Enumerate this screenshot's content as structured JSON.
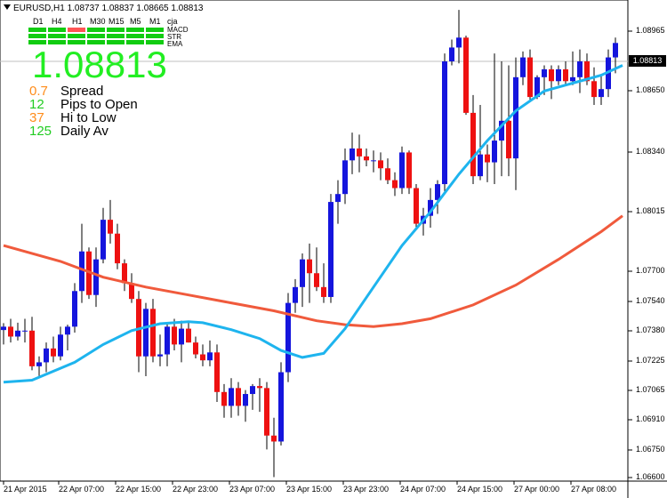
{
  "header": {
    "symbol_line": "EURUSD,H1  1.08737 1.08837 1.08665 1.08813"
  },
  "timeframes": [
    "D1",
    "H4",
    "H1",
    "M30",
    "M15",
    "M5",
    "M1"
  ],
  "timeframe_brand": "cja",
  "indicator_labels": [
    "MACD",
    "STR",
    "EMA"
  ],
  "indicator_grid": {
    "MACD": [
      "green",
      "green",
      "red",
      "green",
      "green",
      "green",
      "green"
    ],
    "STR": [
      "green",
      "green",
      "green",
      "green",
      "green",
      "green",
      "green"
    ],
    "EMA": [
      "green",
      "green",
      "green",
      "green",
      "green",
      "green",
      "green"
    ]
  },
  "big_price": "1.08813",
  "stats": [
    {
      "value": "0.7",
      "label": "Spread",
      "color": "#ff8c1a"
    },
    {
      "value": "12",
      "label": "Pips to Open",
      "color": "#22cc22"
    },
    {
      "value": "37",
      "label": "Hi to Low",
      "color": "#ff8c1a"
    },
    {
      "value": "125",
      "label": "Daily Av",
      "color": "#22cc22"
    }
  ],
  "price_axis": [
    "1.08965",
    "1.08650",
    "1.08340",
    "1.08015",
    "1.07700",
    "1.07540",
    "1.07380",
    "1.07225",
    "1.07065",
    "1.06910",
    "1.06750",
    "1.06600"
  ],
  "current_price_label": "1.08813",
  "time_axis": [
    "21 Apr 2015",
    "22 Apr 07:00",
    "22 Apr 15:00",
    "22 Apr 23:00",
    "23 Apr 07:00",
    "23 Apr 15:00",
    "23 Apr 23:00",
    "24 Apr 07:00",
    "24 Apr 15:00",
    "27 Apr 00:00",
    "27 Apr 08:00"
  ],
  "colors": {
    "bull": "#1515dd",
    "bear": "#ee1111",
    "ema_fast": "#1eb4ee",
    "ema_slow": "#f05a3c",
    "cur_line": "#c0c0c0",
    "grid_green": "#11cc11",
    "grid_red": "#ff5555"
  },
  "chart_data": {
    "type": "candlestick",
    "symbol": "EURUSD",
    "timeframe": "H1",
    "ylim": [
      1.066,
      1.0903
    ],
    "candles": [
      {
        "o": 1.07363,
        "h": 1.07398,
        "l": 1.0729,
        "c": 1.0738
      },
      {
        "o": 1.0738,
        "h": 1.0742,
        "l": 1.073,
        "c": 1.0733
      },
      {
        "o": 1.0733,
        "h": 1.074,
        "l": 1.0731,
        "c": 1.0736
      },
      {
        "o": 1.0736,
        "h": 1.0742,
        "l": 1.073,
        "c": 1.0736
      },
      {
        "o": 1.0736,
        "h": 1.0743,
        "l": 1.0716,
        "c": 1.0718
      },
      {
        "o": 1.0718,
        "h": 1.0723,
        "l": 1.0712,
        "c": 1.072
      },
      {
        "o": 1.072,
        "h": 1.073,
        "l": 1.0715,
        "c": 1.0727
      },
      {
        "o": 1.0727,
        "h": 1.0733,
        "l": 1.072,
        "c": 1.0723
      },
      {
        "o": 1.0723,
        "h": 1.0738,
        "l": 1.0721,
        "c": 1.0734
      },
      {
        "o": 1.0734,
        "h": 1.0739,
        "l": 1.0726,
        "c": 1.0738
      },
      {
        "o": 1.0738,
        "h": 1.076,
        "l": 1.0735,
        "c": 1.0756
      },
      {
        "o": 1.0756,
        "h": 1.079,
        "l": 1.075,
        "c": 1.0776
      },
      {
        "o": 1.0776,
        "h": 1.0778,
        "l": 1.0752,
        "c": 1.0754
      },
      {
        "o": 1.0754,
        "h": 1.0778,
        "l": 1.0748,
        "c": 1.0772
      },
      {
        "o": 1.0772,
        "h": 1.0798,
        "l": 1.077,
        "c": 1.0792
      },
      {
        "o": 1.0792,
        "h": 1.0802,
        "l": 1.078,
        "c": 1.0785
      },
      {
        "o": 1.0785,
        "h": 1.079,
        "l": 1.0767,
        "c": 1.077
      },
      {
        "o": 1.077,
        "h": 1.0772,
        "l": 1.0756,
        "c": 1.076
      },
      {
        "o": 1.076,
        "h": 1.0765,
        "l": 1.075,
        "c": 1.0752
      },
      {
        "o": 1.0752,
        "h": 1.0756,
        "l": 1.0715,
        "c": 1.0723
      },
      {
        "o": 1.0723,
        "h": 1.075,
        "l": 1.0713,
        "c": 1.0747
      },
      {
        "o": 1.0747,
        "h": 1.0752,
        "l": 1.072,
        "c": 1.0723
      },
      {
        "o": 1.0723,
        "h": 1.0734,
        "l": 1.0718,
        "c": 1.0724
      },
      {
        "o": 1.0724,
        "h": 1.074,
        "l": 1.0718,
        "c": 1.0738
      },
      {
        "o": 1.0738,
        "h": 1.0742,
        "l": 1.0726,
        "c": 1.0729
      },
      {
        "o": 1.0729,
        "h": 1.0741,
        "l": 1.072,
        "c": 1.0737
      },
      {
        "o": 1.0737,
        "h": 1.0741,
        "l": 1.073,
        "c": 1.073
      },
      {
        "o": 1.073,
        "h": 1.0733,
        "l": 1.0722,
        "c": 1.0724
      },
      {
        "o": 1.0724,
        "h": 1.0729,
        "l": 1.0718,
        "c": 1.0721
      },
      {
        "o": 1.0721,
        "h": 1.0731,
        "l": 1.0718,
        "c": 1.0725
      },
      {
        "o": 1.0725,
        "h": 1.0729,
        "l": 1.07,
        "c": 1.0705
      },
      {
        "o": 1.0705,
        "h": 1.0709,
        "l": 1.0692,
        "c": 1.0698
      },
      {
        "o": 1.0698,
        "h": 1.0712,
        "l": 1.0692,
        "c": 1.0707
      },
      {
        "o": 1.0707,
        "h": 1.071,
        "l": 1.0693,
        "c": 1.0698
      },
      {
        "o": 1.0698,
        "h": 1.0706,
        "l": 1.069,
        "c": 1.0704
      },
      {
        "o": 1.0704,
        "h": 1.0709,
        "l": 1.0696,
        "c": 1.0708
      },
      {
        "o": 1.0708,
        "h": 1.0712,
        "l": 1.0695,
        "c": 1.0707
      },
      {
        "o": 1.0707,
        "h": 1.071,
        "l": 1.0676,
        "c": 1.0683
      },
      {
        "o": 1.0683,
        "h": 1.0692,
        "l": 1.0662,
        "c": 1.068
      },
      {
        "o": 1.068,
        "h": 1.072,
        "l": 1.0678,
        "c": 1.0715
      },
      {
        "o": 1.0715,
        "h": 1.0755,
        "l": 1.071,
        "c": 1.075
      },
      {
        "o": 1.075,
        "h": 1.0762,
        "l": 1.0745,
        "c": 1.0758
      },
      {
        "o": 1.0758,
        "h": 1.0775,
        "l": 1.0748,
        "c": 1.0772
      },
      {
        "o": 1.0772,
        "h": 1.078,
        "l": 1.075,
        "c": 1.0765
      },
      {
        "o": 1.0765,
        "h": 1.0778,
        "l": 1.0756,
        "c": 1.0758
      },
      {
        "o": 1.0758,
        "h": 1.077,
        "l": 1.075,
        "c": 1.0753
      },
      {
        "o": 1.0753,
        "h": 1.0805,
        "l": 1.075,
        "c": 1.0801
      },
      {
        "o": 1.0801,
        "h": 1.0812,
        "l": 1.079,
        "c": 1.0805
      },
      {
        "o": 1.0805,
        "h": 1.0828,
        "l": 1.08,
        "c": 1.0822
      },
      {
        "o": 1.0822,
        "h": 1.0836,
        "l": 1.0815,
        "c": 1.0828
      },
      {
        "o": 1.0828,
        "h": 1.0835,
        "l": 1.0816,
        "c": 1.0824
      },
      {
        "o": 1.0824,
        "h": 1.0828,
        "l": 1.0819,
        "c": 1.0822
      },
      {
        "o": 1.0822,
        "h": 1.0827,
        "l": 1.0816,
        "c": 1.0822
      },
      {
        "o": 1.0822,
        "h": 1.0826,
        "l": 1.0812,
        "c": 1.0818
      },
      {
        "o": 1.0818,
        "h": 1.0823,
        "l": 1.081,
        "c": 1.0812
      },
      {
        "o": 1.0812,
        "h": 1.0816,
        "l": 1.0804,
        "c": 1.0808
      },
      {
        "o": 1.0808,
        "h": 1.0829,
        "l": 1.0805,
        "c": 1.0826
      },
      {
        "o": 1.0826,
        "h": 1.0827,
        "l": 1.0805,
        "c": 1.0808
      },
      {
        "o": 1.0808,
        "h": 1.081,
        "l": 1.0788,
        "c": 1.079
      },
      {
        "o": 1.079,
        "h": 1.0798,
        "l": 1.0784,
        "c": 1.0794
      },
      {
        "o": 1.0794,
        "h": 1.0808,
        "l": 1.0788,
        "c": 1.0802
      },
      {
        "o": 1.0802,
        "h": 1.0812,
        "l": 1.0795,
        "c": 1.081
      },
      {
        "o": 1.081,
        "h": 1.0876,
        "l": 1.0805,
        "c": 1.0872
      },
      {
        "o": 1.0872,
        "h": 1.0883,
        "l": 1.087,
        "c": 1.0879
      },
      {
        "o": 1.0879,
        "h": 1.0898,
        "l": 1.0871,
        "c": 1.0884
      },
      {
        "o": 1.0884,
        "h": 1.0885,
        "l": 1.0845,
        "c": 1.0846
      },
      {
        "o": 1.0846,
        "h": 1.0855,
        "l": 1.081,
        "c": 1.0814
      },
      {
        "o": 1.0814,
        "h": 1.085,
        "l": 1.0812,
        "c": 1.0825
      },
      {
        "o": 1.0825,
        "h": 1.083,
        "l": 1.0811,
        "c": 1.0821
      },
      {
        "o": 1.0821,
        "h": 1.0876,
        "l": 1.081,
        "c": 1.0832
      },
      {
        "o": 1.0832,
        "h": 1.0872,
        "l": 1.0814,
        "c": 1.0842
      },
      {
        "o": 1.0842,
        "h": 1.087,
        "l": 1.0814,
        "c": 1.0823
      },
      {
        "o": 1.0823,
        "h": 1.0874,
        "l": 1.0807,
        "c": 1.0864
      },
      {
        "o": 1.0864,
        "h": 1.0877,
        "l": 1.086,
        "c": 1.0874
      },
      {
        "o": 1.0874,
        "h": 1.0878,
        "l": 1.0852,
        "c": 1.0854
      },
      {
        "o": 1.0854,
        "h": 1.0865,
        "l": 1.0853,
        "c": 1.0864
      },
      {
        "o": 1.0864,
        "h": 1.087,
        "l": 1.0855,
        "c": 1.0868
      },
      {
        "o": 1.0868,
        "h": 1.087,
        "l": 1.0853,
        "c": 1.0862
      },
      {
        "o": 1.0862,
        "h": 1.087,
        "l": 1.086,
        "c": 1.0868
      },
      {
        "o": 1.0868,
        "h": 1.0872,
        "l": 1.086,
        "c": 1.0862
      },
      {
        "o": 1.0862,
        "h": 1.0877,
        "l": 1.086,
        "c": 1.0864
      },
      {
        "o": 1.0864,
        "h": 1.0878,
        "l": 1.0856,
        "c": 1.0872
      },
      {
        "o": 1.0872,
        "h": 1.0876,
        "l": 1.086,
        "c": 1.0862
      },
      {
        "o": 1.0862,
        "h": 1.0869,
        "l": 1.085,
        "c": 1.0854
      },
      {
        "o": 1.0854,
        "h": 1.0865,
        "l": 1.085,
        "c": 1.0858
      },
      {
        "o": 1.0858,
        "h": 1.0878,
        "l": 1.0854,
        "c": 1.0874
      },
      {
        "o": 1.0874,
        "h": 1.0884,
        "l": 1.0866,
        "c": 1.08813
      }
    ],
    "ema_fast": [
      [
        0,
        1.071
      ],
      [
        4,
        1.0711
      ],
      [
        10,
        1.072
      ],
      [
        14,
        1.0729
      ],
      [
        18,
        1.0736
      ],
      [
        22,
        1.07395
      ],
      [
        26,
        1.07405
      ],
      [
        28,
        1.074
      ],
      [
        32,
        1.07365
      ],
      [
        36,
        1.0732
      ],
      [
        39,
        1.0726
      ],
      [
        42,
        1.07225
      ],
      [
        45,
        1.07245
      ],
      [
        48,
        1.0737
      ],
      [
        52,
        1.0758
      ],
      [
        56,
        1.0779
      ],
      [
        60,
        1.0796
      ],
      [
        64,
        1.0815
      ],
      [
        68,
        1.0832
      ],
      [
        72,
        1.0847
      ],
      [
        76,
        1.0857
      ],
      [
        80,
        1.0861
      ],
      [
        84,
        1.0865
      ],
      [
        87,
        1.087
      ]
    ],
    "ema_slow": [
      [
        0,
        1.0779
      ],
      [
        8,
        1.0771
      ],
      [
        14,
        1.0763
      ],
      [
        20,
        1.0758
      ],
      [
        26,
        1.0754
      ],
      [
        32,
        1.075
      ],
      [
        38,
        1.0746
      ],
      [
        44,
        1.0741
      ],
      [
        48,
        1.0739
      ],
      [
        52,
        1.0738
      ],
      [
        56,
        1.07395
      ],
      [
        60,
        1.0742
      ],
      [
        66,
        1.0749
      ],
      [
        72,
        1.0759
      ],
      [
        78,
        1.0772
      ],
      [
        84,
        1.0786
      ],
      [
        87,
        1.0794
      ]
    ]
  }
}
